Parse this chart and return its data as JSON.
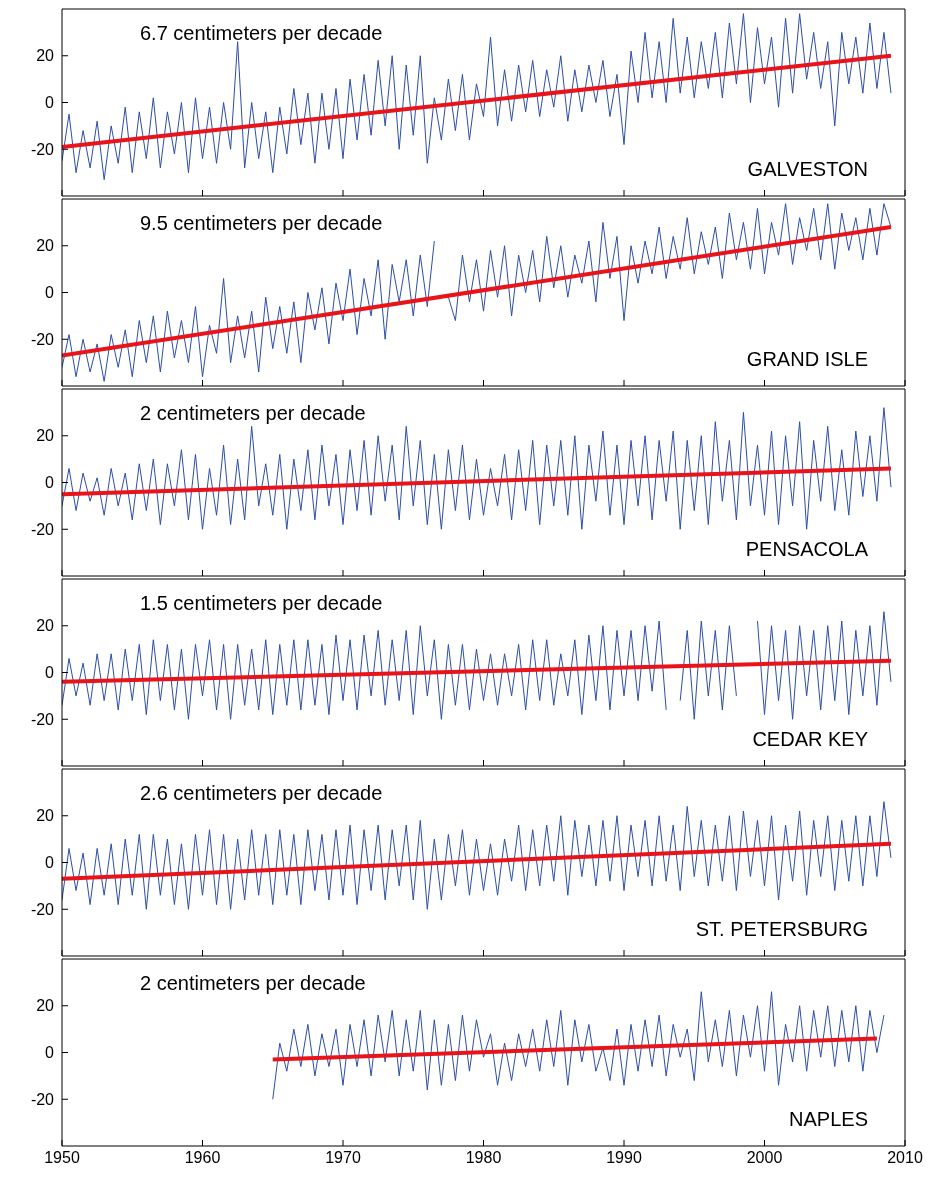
{
  "chart_data": [
    {
      "type": "line",
      "xlim": [
        1950,
        2010
      ],
      "xticks": [
        1950,
        1960,
        1970,
        1980,
        1990,
        2000,
        2010
      ],
      "ylim": [
        -40,
        40
      ],
      "yticks": [
        -20,
        0,
        20
      ],
      "tick_labels": "y",
      "annotations": [
        "6.7 centimeters per decade",
        "GALVESTON"
      ],
      "x": [
        1950,
        1950.5,
        1951,
        1951.5,
        1952,
        1952.5,
        1953,
        1953.5,
        1954,
        1954.5,
        1955,
        1955.5,
        1956,
        1956.5,
        1957,
        1957.5,
        1958,
        1958.5,
        1959,
        1959.5,
        1960,
        1960.5,
        1961,
        1961.5,
        1962,
        1962.5,
        1963,
        1963.5,
        1964,
        1964.5,
        1965,
        1965.5,
        1966,
        1966.5,
        1967,
        1967.5,
        1968,
        1968.5,
        1969,
        1969.5,
        1970,
        1970.5,
        1971,
        1971.5,
        1972,
        1972.5,
        1973,
        1973.5,
        1974,
        1974.5,
        1975,
        1975.5,
        1976,
        1976.5,
        1977,
        1977.5,
        1978,
        1978.5,
        1979,
        1979.5,
        1980,
        1980.5,
        1981,
        1981.5,
        1982,
        1982.5,
        1983,
        1983.5,
        1984,
        1984.5,
        1985,
        1985.5,
        1986,
        1986.5,
        1987,
        1987.5,
        1988,
        1988.5,
        1989,
        1989.5,
        1990,
        1990.5,
        1991,
        1991.5,
        1992,
        1992.5,
        1993,
        1993.5,
        1994,
        1994.5,
        1995,
        1995.5,
        1996,
        1996.5,
        1997,
        1997.5,
        1998,
        1998.5,
        1999,
        1999.5,
        2000,
        2000.5,
        2001,
        2001.5,
        2002,
        2002.5,
        2003,
        2003.5,
        2004,
        2004.5,
        2005,
        2005.5,
        2006,
        2006.5,
        2007,
        2007.5,
        2008,
        2008.5,
        2009
      ],
      "series": [
        {
          "color": "#2c4ea8",
          "values": [
            -25,
            -5,
            -30,
            -12,
            -28,
            -8,
            -33,
            -10,
            -26,
            -2,
            -30,
            -4,
            -24,
            2,
            -28,
            -4,
            -22,
            0,
            -30,
            2,
            -24,
            -2,
            -26,
            0,
            -20,
            26,
            -28,
            0,
            -24,
            -4,
            -30,
            -2,
            -22,
            6,
            -18,
            4,
            -26,
            4,
            -20,
            6,
            -24,
            10,
            -16,
            12,
            -14,
            18,
            -10,
            20,
            -20,
            16,
            -14,
            20,
            -26,
            2,
            -16,
            10,
            -12,
            12,
            -16,
            8,
            -6,
            28,
            -10,
            14,
            -8,
            16,
            -4,
            18,
            -6,
            14,
            -2,
            20,
            -8,
            14,
            -4,
            16,
            0,
            18,
            -6,
            12,
            -18,
            22,
            0,
            30,
            2,
            26,
            0,
            36,
            4,
            28,
            2,
            26,
            6,
            30,
            2,
            34,
            8,
            38,
            0,
            32,
            8,
            28,
            -2,
            36,
            4,
            38,
            10,
            30,
            6,
            26,
            -10,
            30,
            8,
            28,
            4,
            34,
            6,
            30,
            4
          ]
        },
        {
          "type": "line",
          "color": "#e8141a",
          "x": [
            1950,
            2009
          ],
          "values": [
            -19,
            20
          ]
        }
      ]
    },
    {
      "type": "line",
      "xlim": [
        1950,
        2010
      ],
      "xticks": [
        1950,
        1960,
        1970,
        1980,
        1990,
        2000,
        2010
      ],
      "ylim": [
        -40,
        40
      ],
      "yticks": [
        -20,
        0,
        20
      ],
      "tick_labels": "y",
      "annotations": [
        "9.5 centimeters per decade",
        "GRAND ISLE"
      ],
      "x": [
        1950,
        1950.5,
        1951,
        1951.5,
        1952,
        1952.5,
        1953,
        1953.5,
        1954,
        1954.5,
        1955,
        1955.5,
        1956,
        1956.5,
        1957,
        1957.5,
        1958,
        1958.5,
        1959,
        1959.5,
        1960,
        1960.5,
        1961,
        1961.5,
        1962,
        1962.5,
        1963,
        1963.5,
        1964,
        1964.5,
        1965,
        1965.5,
        1966,
        1966.5,
        1967,
        1967.5,
        1968,
        1968.5,
        1969,
        1969.5,
        1970,
        1970.5,
        1971,
        1971.5,
        1972,
        1972.5,
        1973,
        1973.5,
        1974,
        1974.5,
        1975,
        1975.5,
        1976,
        1976.5,
        1977,
        1977.5,
        1978,
        1978.5,
        1979,
        1979.5,
        1980,
        1980.5,
        1981,
        1981.5,
        1982,
        1982.5,
        1983,
        1983.5,
        1984,
        1984.5,
        1985,
        1985.5,
        1986,
        1986.5,
        1987,
        1987.5,
        1988,
        1988.5,
        1989,
        1989.5,
        1990,
        1990.5,
        1991,
        1991.5,
        1992,
        1992.5,
        1993,
        1993.5,
        1994,
        1994.5,
        1995,
        1995.5,
        1996,
        1996.5,
        1997,
        1997.5,
        1998,
        1998.5,
        1999,
        1999.5,
        2000,
        2000.5,
        2001,
        2001.5,
        2002,
        2002.5,
        2003,
        2003.5,
        2004,
        2004.5,
        2005,
        2005.5,
        2006,
        2006.5,
        2007,
        2007.5,
        2008,
        2008.5,
        2009
      ],
      "series": [
        {
          "color": "#2c4ea8",
          "values": [
            -32,
            -18,
            -36,
            -20,
            -34,
            -22,
            -38,
            -18,
            -32,
            -16,
            -36,
            -12,
            -30,
            -10,
            -34,
            -8,
            -28,
            -12,
            -30,
            -6,
            -36,
            -14,
            -26,
            6,
            -30,
            -10,
            -28,
            -8,
            -34,
            -2,
            -24,
            -6,
            -26,
            -4,
            -30,
            0,
            -16,
            2,
            -22,
            4,
            -12,
            10,
            -18,
            6,
            -10,
            14,
            -20,
            12,
            -4,
            14,
            -10,
            16,
            -6,
            22,
            null,
            -2,
            -12,
            16,
            -4,
            14,
            -8,
            18,
            -2,
            20,
            -10,
            16,
            0,
            18,
            -4,
            24,
            2,
            20,
            -2,
            16,
            4,
            22,
            -4,
            30,
            6,
            24,
            -12,
            20,
            4,
            22,
            8,
            28,
            6,
            24,
            10,
            32,
            8,
            26,
            12,
            28,
            6,
            34,
            14,
            30,
            10,
            36,
            8,
            30,
            16,
            38,
            12,
            32,
            18,
            36,
            14,
            38,
            10,
            34,
            18,
            32,
            14,
            36,
            16,
            38,
            28
          ]
        },
        {
          "type": "line",
          "color": "#e8141a",
          "x": [
            1950,
            2009
          ],
          "values": [
            -27,
            28
          ]
        }
      ]
    },
    {
      "type": "line",
      "xlim": [
        1950,
        2010
      ],
      "xticks": [
        1950,
        1960,
        1970,
        1980,
        1990,
        2000,
        2010
      ],
      "ylim": [
        -40,
        40
      ],
      "yticks": [
        -20,
        0,
        20
      ],
      "tick_labels": "y",
      "annotations": [
        "2 centimeters per decade",
        "PENSACOLA"
      ],
      "x": [
        1950,
        1950.5,
        1951,
        1951.5,
        1952,
        1952.5,
        1953,
        1953.5,
        1954,
        1954.5,
        1955,
        1955.5,
        1956,
        1956.5,
        1957,
        1957.5,
        1958,
        1958.5,
        1959,
        1959.5,
        1960,
        1960.5,
        1961,
        1961.5,
        1962,
        1962.5,
        1963,
        1963.5,
        1964,
        1964.5,
        1965,
        1965.5,
        1966,
        1966.5,
        1967,
        1967.5,
        1968,
        1968.5,
        1969,
        1969.5,
        1970,
        1970.5,
        1971,
        1971.5,
        1972,
        1972.5,
        1973,
        1973.5,
        1974,
        1974.5,
        1975,
        1975.5,
        1976,
        1976.5,
        1977,
        1977.5,
        1978,
        1978.5,
        1979,
        1979.5,
        1980,
        1980.5,
        1981,
        1981.5,
        1982,
        1982.5,
        1983,
        1983.5,
        1984,
        1984.5,
        1985,
        1985.5,
        1986,
        1986.5,
        1987,
        1987.5,
        1988,
        1988.5,
        1989,
        1989.5,
        1990,
        1990.5,
        1991,
        1991.5,
        1992,
        1992.5,
        1993,
        1993.5,
        1994,
        1994.5,
        1995,
        1995.5,
        1996,
        1996.5,
        1997,
        1997.5,
        1998,
        1998.5,
        1999,
        1999.5,
        2000,
        2000.5,
        2001,
        2001.5,
        2002,
        2002.5,
        2003,
        2003.5,
        2004,
        2004.5,
        2005,
        2005.5,
        2006,
        2006.5,
        2007,
        2007.5,
        2008,
        2008.5,
        2009
      ],
      "series": [
        {
          "color": "#2c4ea8",
          "values": [
            -10,
            6,
            -12,
            4,
            -8,
            2,
            -14,
            6,
            -10,
            4,
            -16,
            8,
            -12,
            10,
            -18,
            8,
            -10,
            14,
            -16,
            12,
            -20,
            6,
            -14,
            16,
            -18,
            10,
            -16,
            24,
            -10,
            8,
            -14,
            12,
            -20,
            10,
            -12,
            14,
            -16,
            16,
            -10,
            12,
            -18,
            14,
            -12,
            18,
            -14,
            20,
            -8,
            16,
            -16,
            24,
            -10,
            18,
            -18,
            12,
            -20,
            14,
            -12,
            16,
            -16,
            10,
            -14,
            6,
            -10,
            12,
            -16,
            14,
            -12,
            18,
            -18,
            16,
            -10,
            18,
            -14,
            20,
            -20,
            16,
            -8,
            22,
            -14,
            16,
            -18,
            18,
            -10,
            20,
            -16,
            18,
            -8,
            22,
            -20,
            18,
            -12,
            20,
            -18,
            26,
            -8,
            18,
            -16,
            30,
            -10,
            16,
            -14,
            22,
            -18,
            20,
            -10,
            26,
            -20,
            18,
            -8,
            24,
            -12,
            14,
            -14,
            22,
            -6,
            20,
            -8,
            32,
            -2
          ]
        },
        {
          "type": "line",
          "color": "#e8141a",
          "x": [
            1950,
            2009
          ],
          "values": [
            -5,
            6
          ]
        }
      ]
    },
    {
      "type": "line",
      "xlim": [
        1950,
        2010
      ],
      "xticks": [
        1950,
        1960,
        1970,
        1980,
        1990,
        2000,
        2010
      ],
      "ylim": [
        -40,
        40
      ],
      "yticks": [
        -20,
        0,
        20
      ],
      "tick_labels": "y",
      "annotations": [
        "1.5 centimeters per decade",
        "CEDAR KEY"
      ],
      "x": [
        1950,
        1950.5,
        1951,
        1951.5,
        1952,
        1952.5,
        1953,
        1953.5,
        1954,
        1954.5,
        1955,
        1955.5,
        1956,
        1956.5,
        1957,
        1957.5,
        1958,
        1958.5,
        1959,
        1959.5,
        1960,
        1960.5,
        1961,
        1961.5,
        1962,
        1962.5,
        1963,
        1963.5,
        1964,
        1964.5,
        1965,
        1965.5,
        1966,
        1966.5,
        1967,
        1967.5,
        1968,
        1968.5,
        1969,
        1969.5,
        1970,
        1970.5,
        1971,
        1971.5,
        1972,
        1972.5,
        1973,
        1973.5,
        1974,
        1974.5,
        1975,
        1975.5,
        1976,
        1976.5,
        1977,
        1977.5,
        1978,
        1978.5,
        1979,
        1979.5,
        1980,
        1980.5,
        1981,
        1981.5,
        1982,
        1982.5,
        1983,
        1983.5,
        1984,
        1984.5,
        1985,
        1985.5,
        1986,
        1986.5,
        1987,
        1987.5,
        1988,
        1988.5,
        1989,
        1989.5,
        1990,
        1990.5,
        1991,
        1991.5,
        1992,
        1992.5,
        1993,
        1993.5,
        1994,
        1994.5,
        1995,
        1995.5,
        1996,
        1996.5,
        1997,
        1997.5,
        1998,
        1998.5,
        1999,
        1999.5,
        2000,
        2000.5,
        2001,
        2001.5,
        2002,
        2002.5,
        2003,
        2003.5,
        2004,
        2004.5,
        2005,
        2005.5,
        2006,
        2006.5,
        2007,
        2007.5,
        2008,
        2008.5,
        2009
      ],
      "series": [
        {
          "color": "#2c4ea8",
          "values": [
            -14,
            6,
            -10,
            4,
            -14,
            8,
            -12,
            8,
            -16,
            10,
            -12,
            12,
            -18,
            14,
            -12,
            12,
            -16,
            10,
            -20,
            12,
            -10,
            14,
            -16,
            12,
            -20,
            12,
            -14,
            10,
            -16,
            14,
            -18,
            12,
            -14,
            14,
            -16,
            14,
            -14,
            12,
            -18,
            16,
            -12,
            14,
            -16,
            16,
            -10,
            18,
            -14,
            14,
            -12,
            18,
            -18,
            20,
            -10,
            14,
            -20,
            12,
            -14,
            12,
            -16,
            10,
            -12,
            8,
            -14,
            8,
            -10,
            12,
            -16,
            14,
            -12,
            14,
            -14,
            8,
            -10,
            14,
            -18,
            16,
            -12,
            20,
            -16,
            18,
            -10,
            18,
            -12,
            20,
            -8,
            22,
            -16,
            null,
            -12,
            18,
            -20,
            22,
            -10,
            18,
            -16,
            20,
            -10,
            null,
            null,
            22,
            -18,
            20,
            -12,
            18,
            -20,
            20,
            -10,
            18,
            -16,
            20,
            -12,
            22,
            -18,
            18,
            -10,
            20,
            -14,
            26,
            -4
          ]
        },
        {
          "type": "line",
          "color": "#e8141a",
          "x": [
            1950,
            2009
          ],
          "values": [
            -4,
            5
          ]
        }
      ]
    },
    {
      "type": "line",
      "xlim": [
        1950,
        2010
      ],
      "xticks": [
        1950,
        1960,
        1970,
        1980,
        1990,
        2000,
        2010
      ],
      "ylim": [
        -40,
        40
      ],
      "yticks": [
        -20,
        0,
        20
      ],
      "tick_labels": "y",
      "annotations": [
        "2.6 centimeters per decade",
        "ST. PETERSBURG"
      ],
      "x": [
        1950,
        1950.5,
        1951,
        1951.5,
        1952,
        1952.5,
        1953,
        1953.5,
        1954,
        1954.5,
        1955,
        1955.5,
        1956,
        1956.5,
        1957,
        1957.5,
        1958,
        1958.5,
        1959,
        1959.5,
        1960,
        1960.5,
        1961,
        1961.5,
        1962,
        1962.5,
        1963,
        1963.5,
        1964,
        1964.5,
        1965,
        1965.5,
        1966,
        1966.5,
        1967,
        1967.5,
        1968,
        1968.5,
        1969,
        1969.5,
        1970,
        1970.5,
        1971,
        1971.5,
        1972,
        1972.5,
        1973,
        1973.5,
        1974,
        1974.5,
        1975,
        1975.5,
        1976,
        1976.5,
        1977,
        1977.5,
        1978,
        1978.5,
        1979,
        1979.5,
        1980,
        1980.5,
        1981,
        1981.5,
        1982,
        1982.5,
        1983,
        1983.5,
        1984,
        1984.5,
        1985,
        1985.5,
        1986,
        1986.5,
        1987,
        1987.5,
        1988,
        1988.5,
        1989,
        1989.5,
        1990,
        1990.5,
        1991,
        1991.5,
        1992,
        1992.5,
        1993,
        1993.5,
        1994,
        1994.5,
        1995,
        1995.5,
        1996,
        1996.5,
        1997,
        1997.5,
        1998,
        1998.5,
        1999,
        1999.5,
        2000,
        2000.5,
        2001,
        2001.5,
        2002,
        2002.5,
        2003,
        2003.5,
        2004,
        2004.5,
        2005,
        2005.5,
        2006,
        2006.5,
        2007,
        2007.5,
        2008,
        2008.5,
        2009
      ],
      "series": [
        {
          "color": "#2c4ea8",
          "values": [
            -16,
            6,
            -12,
            4,
            -18,
            6,
            -14,
            8,
            -18,
            10,
            -14,
            12,
            -20,
            12,
            -14,
            10,
            -18,
            8,
            -20,
            12,
            -14,
            14,
            -18,
            12,
            -20,
            10,
            -16,
            14,
            -14,
            12,
            -18,
            14,
            -14,
            12,
            -18,
            14,
            -12,
            12,
            -16,
            14,
            -14,
            16,
            -18,
            14,
            -12,
            16,
            -16,
            14,
            -10,
            16,
            -16,
            18,
            -20,
            10,
            -16,
            12,
            -10,
            14,
            -14,
            10,
            -12,
            8,
            -14,
            10,
            -8,
            16,
            -12,
            14,
            -10,
            16,
            -8,
            20,
            -14,
            18,
            -6,
            16,
            -10,
            18,
            -8,
            20,
            -12,
            16,
            -6,
            18,
            -10,
            20,
            -8,
            16,
            -12,
            24,
            -6,
            18,
            -10,
            16,
            -8,
            20,
            -12,
            22,
            -6,
            18,
            -10,
            20,
            -16,
            16,
            -8,
            22,
            -14,
            18,
            -6,
            20,
            -12,
            18,
            -8,
            20,
            -10,
            20,
            -6,
            26,
            2
          ]
        },
        {
          "type": "line",
          "color": "#e8141a",
          "x": [
            1950,
            2009
          ],
          "values": [
            -7,
            8
          ]
        }
      ]
    },
    {
      "type": "line",
      "xlim": [
        1950,
        2010
      ],
      "xticks": [
        1950,
        1960,
        1970,
        1980,
        1990,
        2000,
        2010
      ],
      "ylim": [
        -40,
        40
      ],
      "yticks": [
        -20,
        0,
        20
      ],
      "annotations": [
        "2 centimeters per decade",
        "NAPLES"
      ],
      "series": [
        {
          "color": "#2c4ea8",
          "x": [
            1965,
            1965.5,
            1966,
            1966.5,
            1967,
            1967.5,
            1968,
            1968.5,
            1969,
            1969.5,
            1970,
            1970.5,
            1971,
            1971.5,
            1972,
            1972.5,
            1973,
            1973.5,
            1974,
            1974.5,
            1975,
            1975.5,
            1976,
            1976.5,
            1977,
            1977.5,
            1978,
            1978.5,
            1979,
            1979.5,
            1980,
            1980.5,
            1981,
            1981.5,
            1982,
            1982.5,
            1983,
            1983.5,
            1984,
            1984.5,
            1985,
            1985.5,
            1986,
            1986.5,
            1987,
            1987.5,
            1988,
            1988.5,
            1989,
            1989.5,
            1990,
            1990.5,
            1991,
            1991.5,
            1992,
            1992.5,
            1993,
            1993.5,
            1994,
            1994.5,
            1995,
            1995.5,
            1996,
            1996.5,
            1997,
            1997.5,
            1998,
            1998.5,
            1999,
            1999.5,
            2000,
            2000.5,
            2001,
            2001.5,
            2002,
            2002.5,
            2003,
            2003.5,
            2004,
            2004.5,
            2005,
            2005.5,
            2006,
            2006.5,
            2007,
            2007.5,
            2008,
            2008.5
          ],
          "values": [
            -20,
            4,
            -8,
            10,
            -6,
            12,
            -10,
            8,
            -6,
            10,
            -14,
            12,
            -6,
            14,
            -10,
            16,
            -4,
            18,
            -10,
            14,
            -8,
            18,
            -16,
            14,
            -14,
            12,
            -12,
            16,
            -8,
            14,
            -2,
            8,
            -14,
            4,
            -12,
            8,
            -6,
            10,
            -8,
            14,
            -6,
            18,
            -14,
            14,
            -4,
            12,
            -8,
            2,
            -12,
            10,
            -14,
            12,
            -8,
            14,
            -6,
            16,
            -10,
            12,
            -2,
            10,
            -12,
            26,
            -4,
            14,
            -6,
            18,
            -10,
            16,
            -2,
            20,
            -8,
            26,
            -14,
            12,
            -4,
            20,
            -8,
            18,
            -2,
            20,
            -6,
            18,
            -4,
            20,
            -8,
            18,
            0,
            16
          ]
        },
        {
          "type": "line",
          "color": "#e8141a",
          "x": [
            1965,
            2008
          ],
          "values": [
            -3,
            6
          ]
        }
      ]
    }
  ]
}
